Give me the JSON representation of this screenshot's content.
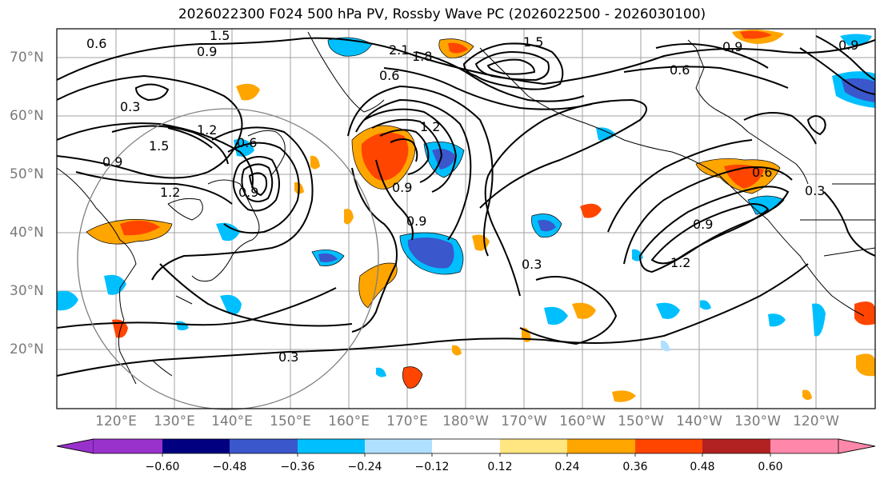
{
  "title": "2026022300 F024 500 hPa PV, Rossby Wave PC (2026022500 - 2026030100)",
  "lat_labels": [
    "70°N",
    "60°N",
    "50°N",
    "40°N",
    "30°N",
    "20°N"
  ],
  "lon_labels": [
    "120°E",
    "130°E",
    "140°E",
    "150°E",
    "160°E",
    "170°E",
    "180°W",
    "170°W",
    "160°W",
    "150°W",
    "140°W",
    "130°W",
    "120°W"
  ],
  "colorbar": {
    "ticks": [
      "−0.60",
      "−0.48",
      "−0.36",
      "−0.24",
      "−0.12",
      "0.12",
      "0.24",
      "0.36",
      "0.48",
      "0.60"
    ],
    "colors": [
      "#9932cc",
      "#000080",
      "#3a57cc",
      "#00bfff",
      "#b0e0ff",
      "#ffffff",
      "#ffe680",
      "#ffa500",
      "#ff4500",
      "#b22222",
      "#ff88aa"
    ]
  },
  "contour_labels": [
    "0.6",
    "1.5",
    "0.9",
    "2.1",
    "1.8",
    "0.6",
    "1.5",
    "0.9",
    "0.6",
    "0.9",
    "0.3",
    "1.2",
    "1.5",
    "0.9",
    "1.2",
    "1.2",
    "0.9",
    "0.9",
    "0.9",
    "0.6",
    "0.3",
    "0.9",
    "1.2",
    "0.3",
    "0.3",
    "0.6"
  ],
  "colors": {
    "contour": "#000000",
    "grid": "#a0a0a0",
    "coast": "#000000",
    "circle": "#808080"
  }
}
